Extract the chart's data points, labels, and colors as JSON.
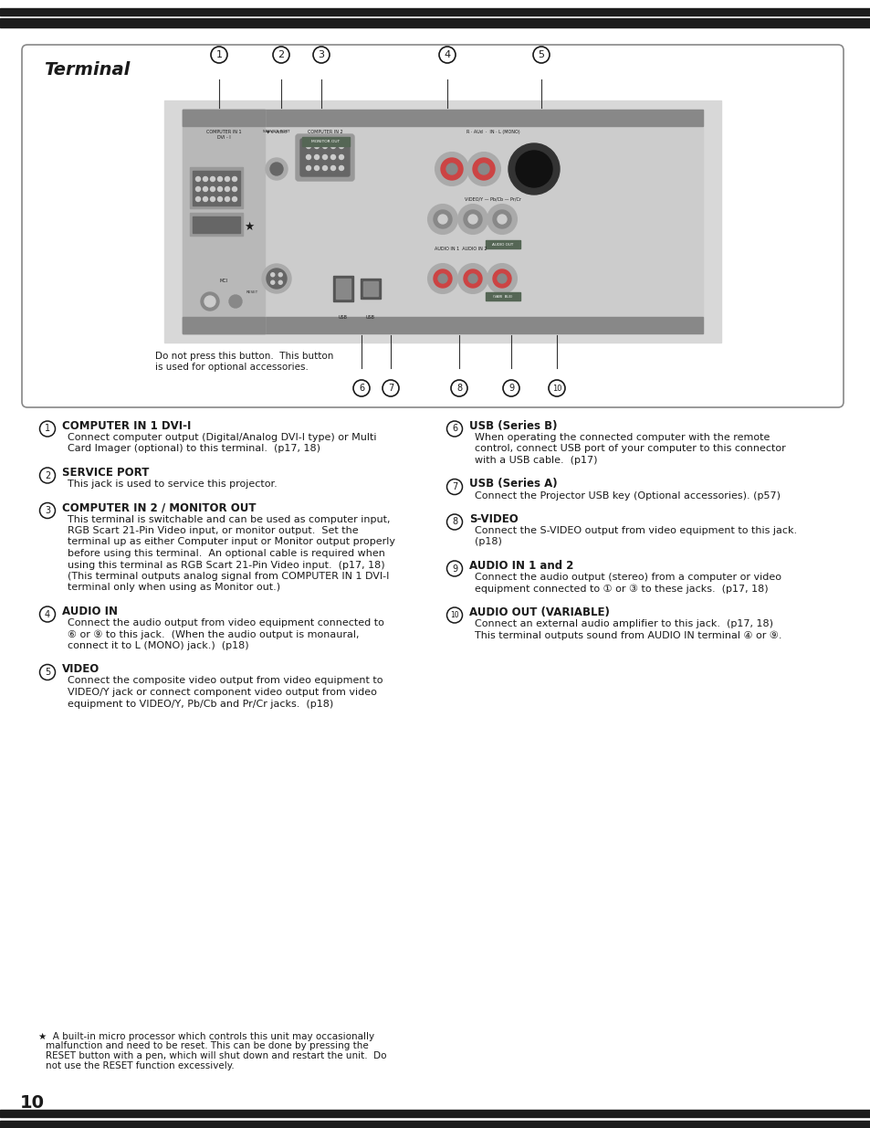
{
  "page_number": "10",
  "title": "Terminal",
  "bg_color": "#ffffff",
  "text_color": "#1a1a1a",
  "items_left": [
    {
      "num": "1",
      "heading": "COMPUTER IN 1 DVI-I",
      "body": [
        "Connect computer output (Digital/Analog DVI-I type) or Multi",
        "Card Imager (optional) to this terminal.  (p17, 18)"
      ]
    },
    {
      "num": "2",
      "heading": "SERVICE PORT",
      "body": [
        "This jack is used to service this projector."
      ]
    },
    {
      "num": "3",
      "heading": "COMPUTER IN 2 / MONITOR OUT",
      "body": [
        "This terminal is switchable and can be used as computer input,",
        "RGB Scart 21-Pin Video input, or monitor output.  Set the",
        "terminal up as either Computer input or Monitor output properly",
        "before using this terminal.  An optional cable is required when",
        "using this terminal as RGB Scart 21-Pin Video input.  (p17, 18)",
        "(This terminal outputs analog signal from COMPUTER IN 1 DVI-I",
        "terminal only when using as Monitor out.)"
      ]
    },
    {
      "num": "4",
      "heading": "AUDIO IN",
      "body": [
        "Connect the audio output from video equipment connected to",
        "⑥ or ⑨ to this jack.  (When the audio output is monaural,",
        "connect it to L (MONO) jack.)  (p18)"
      ]
    },
    {
      "num": "5",
      "heading": "VIDEO",
      "body": [
        "Connect the composite video output from video equipment to",
        "VIDEO/Y jack or connect component video output from video",
        "equipment to VIDEO/Y, Pb/Cb and Pr/Cr jacks.  (p18)"
      ]
    }
  ],
  "items_right": [
    {
      "num": "6",
      "heading": "USB (Series B)",
      "body": [
        "When operating the connected computer with the remote",
        "control, connect USB port of your computer to this connector",
        "with a USB cable.  (p17)"
      ]
    },
    {
      "num": "7",
      "heading": "USB (Series A)",
      "body": [
        "Connect the Projector USB key (Optional accessories). (p57)"
      ]
    },
    {
      "num": "8",
      "heading": "S-VIDEO",
      "body": [
        "Connect the S-VIDEO output from video equipment to this jack.",
        "(p18)"
      ]
    },
    {
      "num": "9",
      "heading": "AUDIO IN 1 and 2",
      "body": [
        "Connect the audio output (stereo) from a computer or video",
        "equipment connected to ① or ③ to these jacks.  (p17, 18)"
      ]
    },
    {
      "num": "10",
      "heading": "AUDIO OUT (VARIABLE)",
      "body": [
        "Connect an external audio amplifier to this jack.  (p17, 18)",
        "This terminal outputs sound from AUDIO IN terminal ④ or ⑨."
      ]
    }
  ],
  "footnote_lines": [
    "★  A built-in micro processor which controls this unit may occasionally",
    "malfunction and need to be reset. This can be done by pressing the",
    "RESET button with a pen, which will shut down and restart the unit.  Do",
    "not use the RESET function excessively."
  ],
  "reset_note": "Do not press this button.  This button\nis used for optional accessories."
}
